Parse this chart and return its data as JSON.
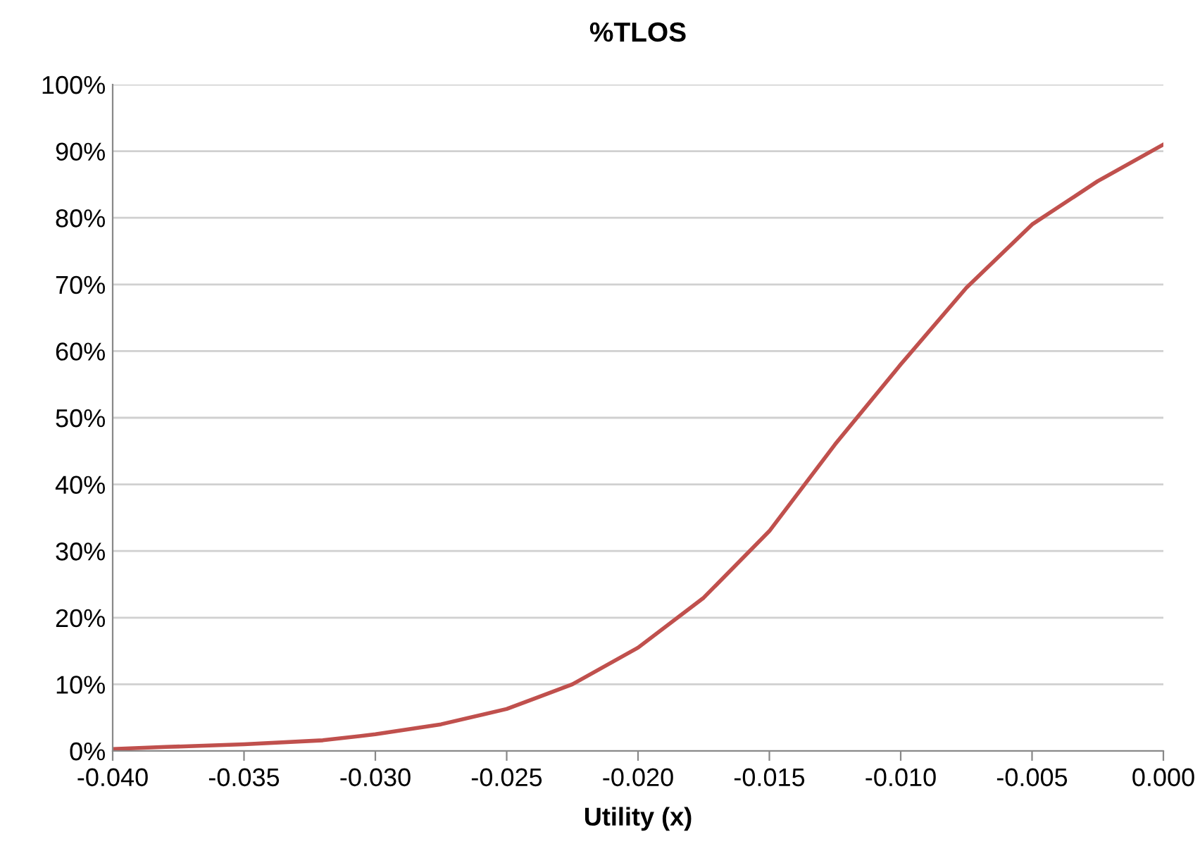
{
  "chart_data": {
    "type": "line",
    "title": "%TLOS",
    "xlabel": "Utility (x)",
    "series": [
      {
        "color": "#c0504d",
        "x": [
          -0.04,
          -0.038,
          -0.035,
          -0.032,
          -0.03,
          -0.0275,
          -0.025,
          -0.0225,
          -0.02,
          -0.0175,
          -0.015,
          -0.0125,
          -0.01,
          -0.0075,
          -0.005,
          -0.0025,
          0.0
        ],
        "values": [
          0.3,
          0.6,
          1.0,
          1.6,
          2.5,
          4.0,
          6.3,
          10,
          15.5,
          23,
          33,
          46,
          58,
          69.5,
          79,
          85.5,
          91
        ]
      }
    ],
    "xlim": [
      -0.04,
      0.0
    ],
    "xticks": [
      {
        "value": -0.04,
        "label": "-0.040"
      },
      {
        "value": -0.035,
        "label": "-0.035"
      },
      {
        "value": -0.03,
        "label": "-0.030"
      },
      {
        "value": -0.025,
        "label": "-0.025"
      },
      {
        "value": -0.02,
        "label": "-0.020"
      },
      {
        "value": -0.015,
        "label": "-0.015"
      },
      {
        "value": -0.01,
        "label": "-0.010"
      },
      {
        "value": -0.005,
        "label": "-0.005"
      },
      {
        "value": 0.0,
        "label": "0.000"
      }
    ],
    "ylim": [
      0,
      100
    ],
    "yticks": [
      {
        "value": 0,
        "label": "0%"
      },
      {
        "value": 10,
        "label": "10%"
      },
      {
        "value": 20,
        "label": "20%"
      },
      {
        "value": 30,
        "label": "30%"
      },
      {
        "value": 40,
        "label": "40%"
      },
      {
        "value": 50,
        "label": "50%"
      },
      {
        "value": 60,
        "label": "60%"
      },
      {
        "value": 70,
        "label": "70%"
      },
      {
        "value": 80,
        "label": "80%"
      },
      {
        "value": 90,
        "label": "90%"
      },
      {
        "value": 100,
        "label": "100%"
      }
    ],
    "grid": "y"
  }
}
